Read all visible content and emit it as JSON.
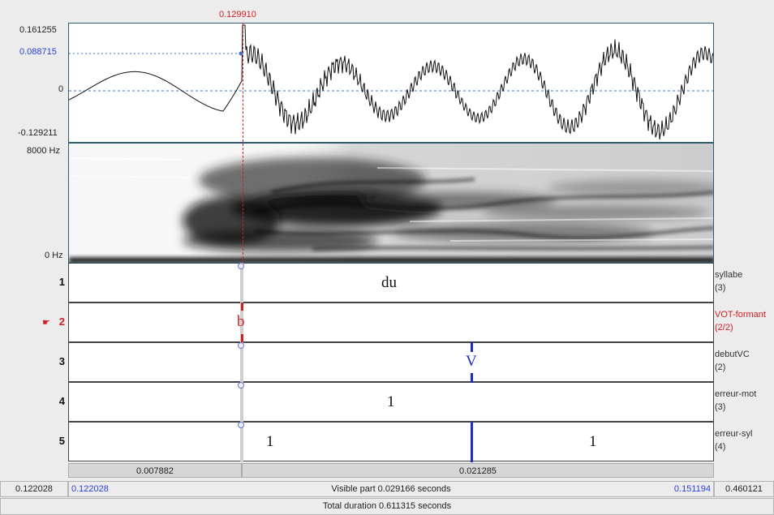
{
  "cursor_time": "0.129910",
  "waveform": {
    "max_label": "0.161255",
    "cursor_value_label": "0.088715",
    "zero_label": "0",
    "min_label": "-0.129211"
  },
  "spectrogram": {
    "top_label": "8000 Hz",
    "bottom_label": "0 Hz"
  },
  "tiers": [
    {
      "number": "1",
      "name": "syllabe",
      "count": "(3)",
      "text": "du"
    },
    {
      "number": "2",
      "name": "VOT-formant",
      "count": "(2/2)",
      "text": "b",
      "selected": true
    },
    {
      "number": "3",
      "name": "debutVC",
      "count": "(2)",
      "text": "V"
    },
    {
      "number": "4",
      "name": "erreur-mot",
      "count": "(3)",
      "text": "1"
    },
    {
      "number": "5",
      "name": "erreur-syl",
      "count": "(4)",
      "text_left": "1",
      "text_right": "1"
    }
  ],
  "segments": {
    "left": "0.007882",
    "right": "0.021285"
  },
  "time_bar": {
    "window_start": "0.122028",
    "visible_start": "0.122028",
    "visible_label": "Visible part 0.029166 seconds",
    "visible_end": "0.151194",
    "window_end": "0.460121",
    "total_label": "Total duration 0.611315 seconds"
  },
  "colors": {
    "cursor": "#d02020",
    "boundary_blue": "#1a2fbf",
    "axis_blue": "#2a3fd6",
    "panel_border": "#2f5b6e"
  }
}
